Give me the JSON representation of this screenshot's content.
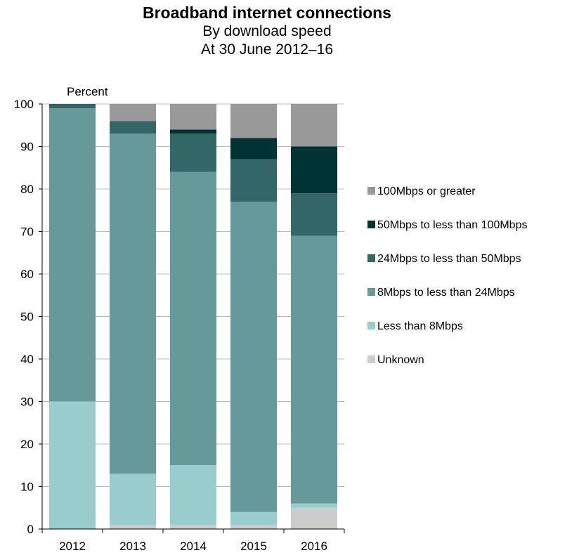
{
  "chart_data": {
    "type": "bar",
    "stacked": true,
    "title": "Broadband internet connections",
    "subtitle_lines": [
      "By download speed",
      "At 30 June 2012–16"
    ],
    "ylabel": "Percent",
    "ylim": [
      0,
      100
    ],
    "yticks": [
      0,
      10,
      20,
      30,
      40,
      50,
      60,
      70,
      80,
      90,
      100
    ],
    "grid": true,
    "legend_position": "right",
    "categories": [
      "2012",
      "2013",
      "2014",
      "2015",
      "2016"
    ],
    "series": [
      {
        "name": "Unknown",
        "color": "#cccccc",
        "values": [
          0,
          1,
          1,
          1,
          5
        ]
      },
      {
        "name": "Less than 8Mbps",
        "color": "#99cccc",
        "values": [
          30,
          12,
          14,
          3,
          1
        ]
      },
      {
        "name": "8Mbps to less than 24Mbps",
        "color": "#669999",
        "values": [
          69,
          80,
          69,
          73,
          63
        ]
      },
      {
        "name": "24Mbps to less than 50Mbps",
        "color": "#336666",
        "values": [
          1,
          3,
          9,
          10,
          10
        ]
      },
      {
        "name": "50Mbps to less than 100Mbps",
        "color": "#003333",
        "values": [
          0,
          0,
          1,
          5,
          11
        ]
      },
      {
        "name": "100Mbps or greater",
        "color": "#999999",
        "values": [
          0,
          4,
          6,
          8,
          10
        ]
      }
    ]
  }
}
